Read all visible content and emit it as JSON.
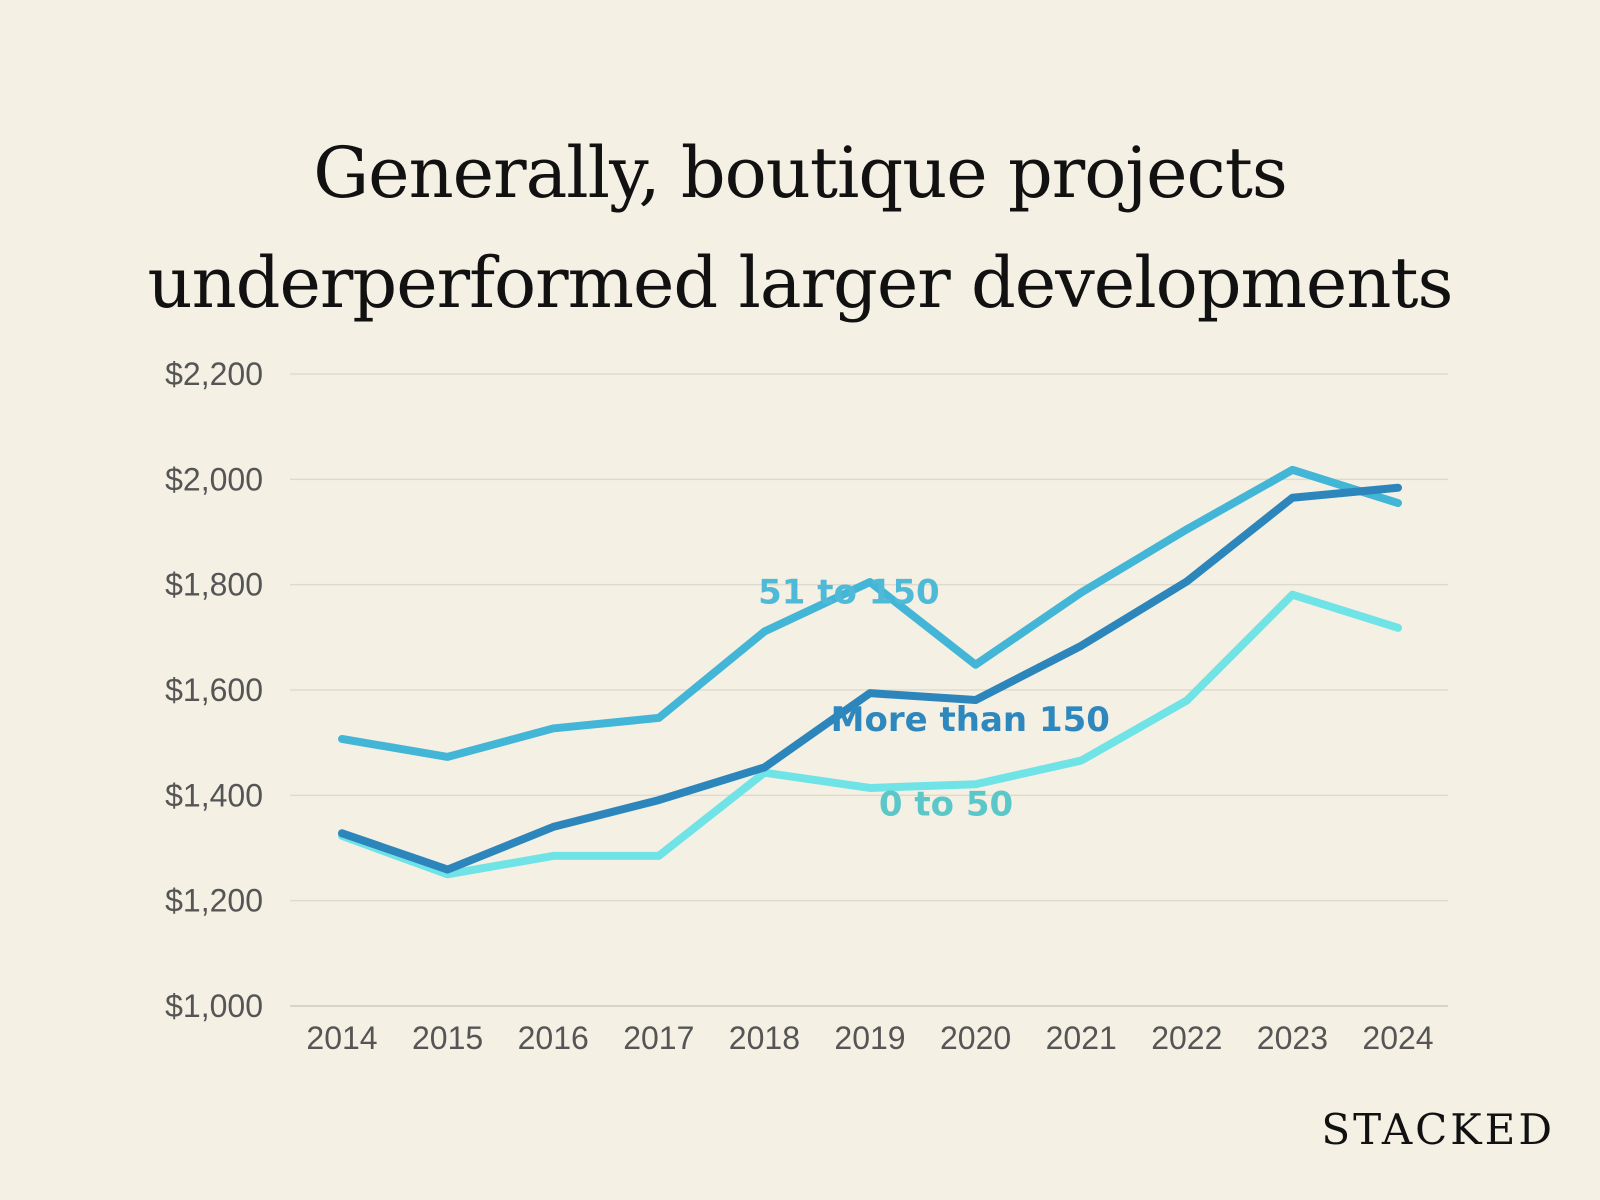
{
  "title_lines": [
    "Generally, boutique projects",
    "underperformed larger developments"
  ],
  "brand": "STACKED",
  "chart_data": {
    "type": "line",
    "title": "Generally, boutique projects underperformed larger developments",
    "xlabel": "",
    "ylabel": "",
    "x": [
      "2014",
      "2015",
      "2016",
      "2017",
      "2018",
      "2019",
      "2020",
      "2021",
      "2022",
      "2023",
      "2024"
    ],
    "ylim": [
      1000,
      2200
    ],
    "yticks": [
      1000,
      1200,
      1400,
      1600,
      1800,
      2000,
      2200
    ],
    "ytick_labels": [
      "$1,000",
      "$1,200",
      "$1,400",
      "$1,600",
      "$1,800",
      "$2,000",
      "$2,200"
    ],
    "grid": true,
    "series": [
      {
        "name": "51 to 150",
        "label": "51 to 150",
        "color": "#43b5d6",
        "label_color": "#4fbad8",
        "label_at": {
          "x": 2018.8,
          "y": 1764
        },
        "values": [
          1507,
          1473,
          1527,
          1547,
          1711,
          1805,
          1648,
          1785,
          1905,
          2018,
          1955
        ]
      },
      {
        "name": "More than 150",
        "label": "More than 150",
        "color": "#2d86bb",
        "label_color": "#2f88bd",
        "label_at": {
          "x": 2019.95,
          "y": 1522
        },
        "values": [
          1328,
          1259,
          1340,
          1391,
          1453,
          1594,
          1581,
          1684,
          1806,
          1965,
          1984
        ]
      },
      {
        "name": "0 to 50",
        "label": "0 to 50",
        "color": "#6fe3e6",
        "label_color": "#5cc7c9",
        "label_at": {
          "x": 2019.72,
          "y": 1362
        },
        "values": [
          1323,
          1250,
          1285,
          1285,
          1443,
          1414,
          1421,
          1466,
          1580,
          1781,
          1718
        ]
      }
    ]
  }
}
